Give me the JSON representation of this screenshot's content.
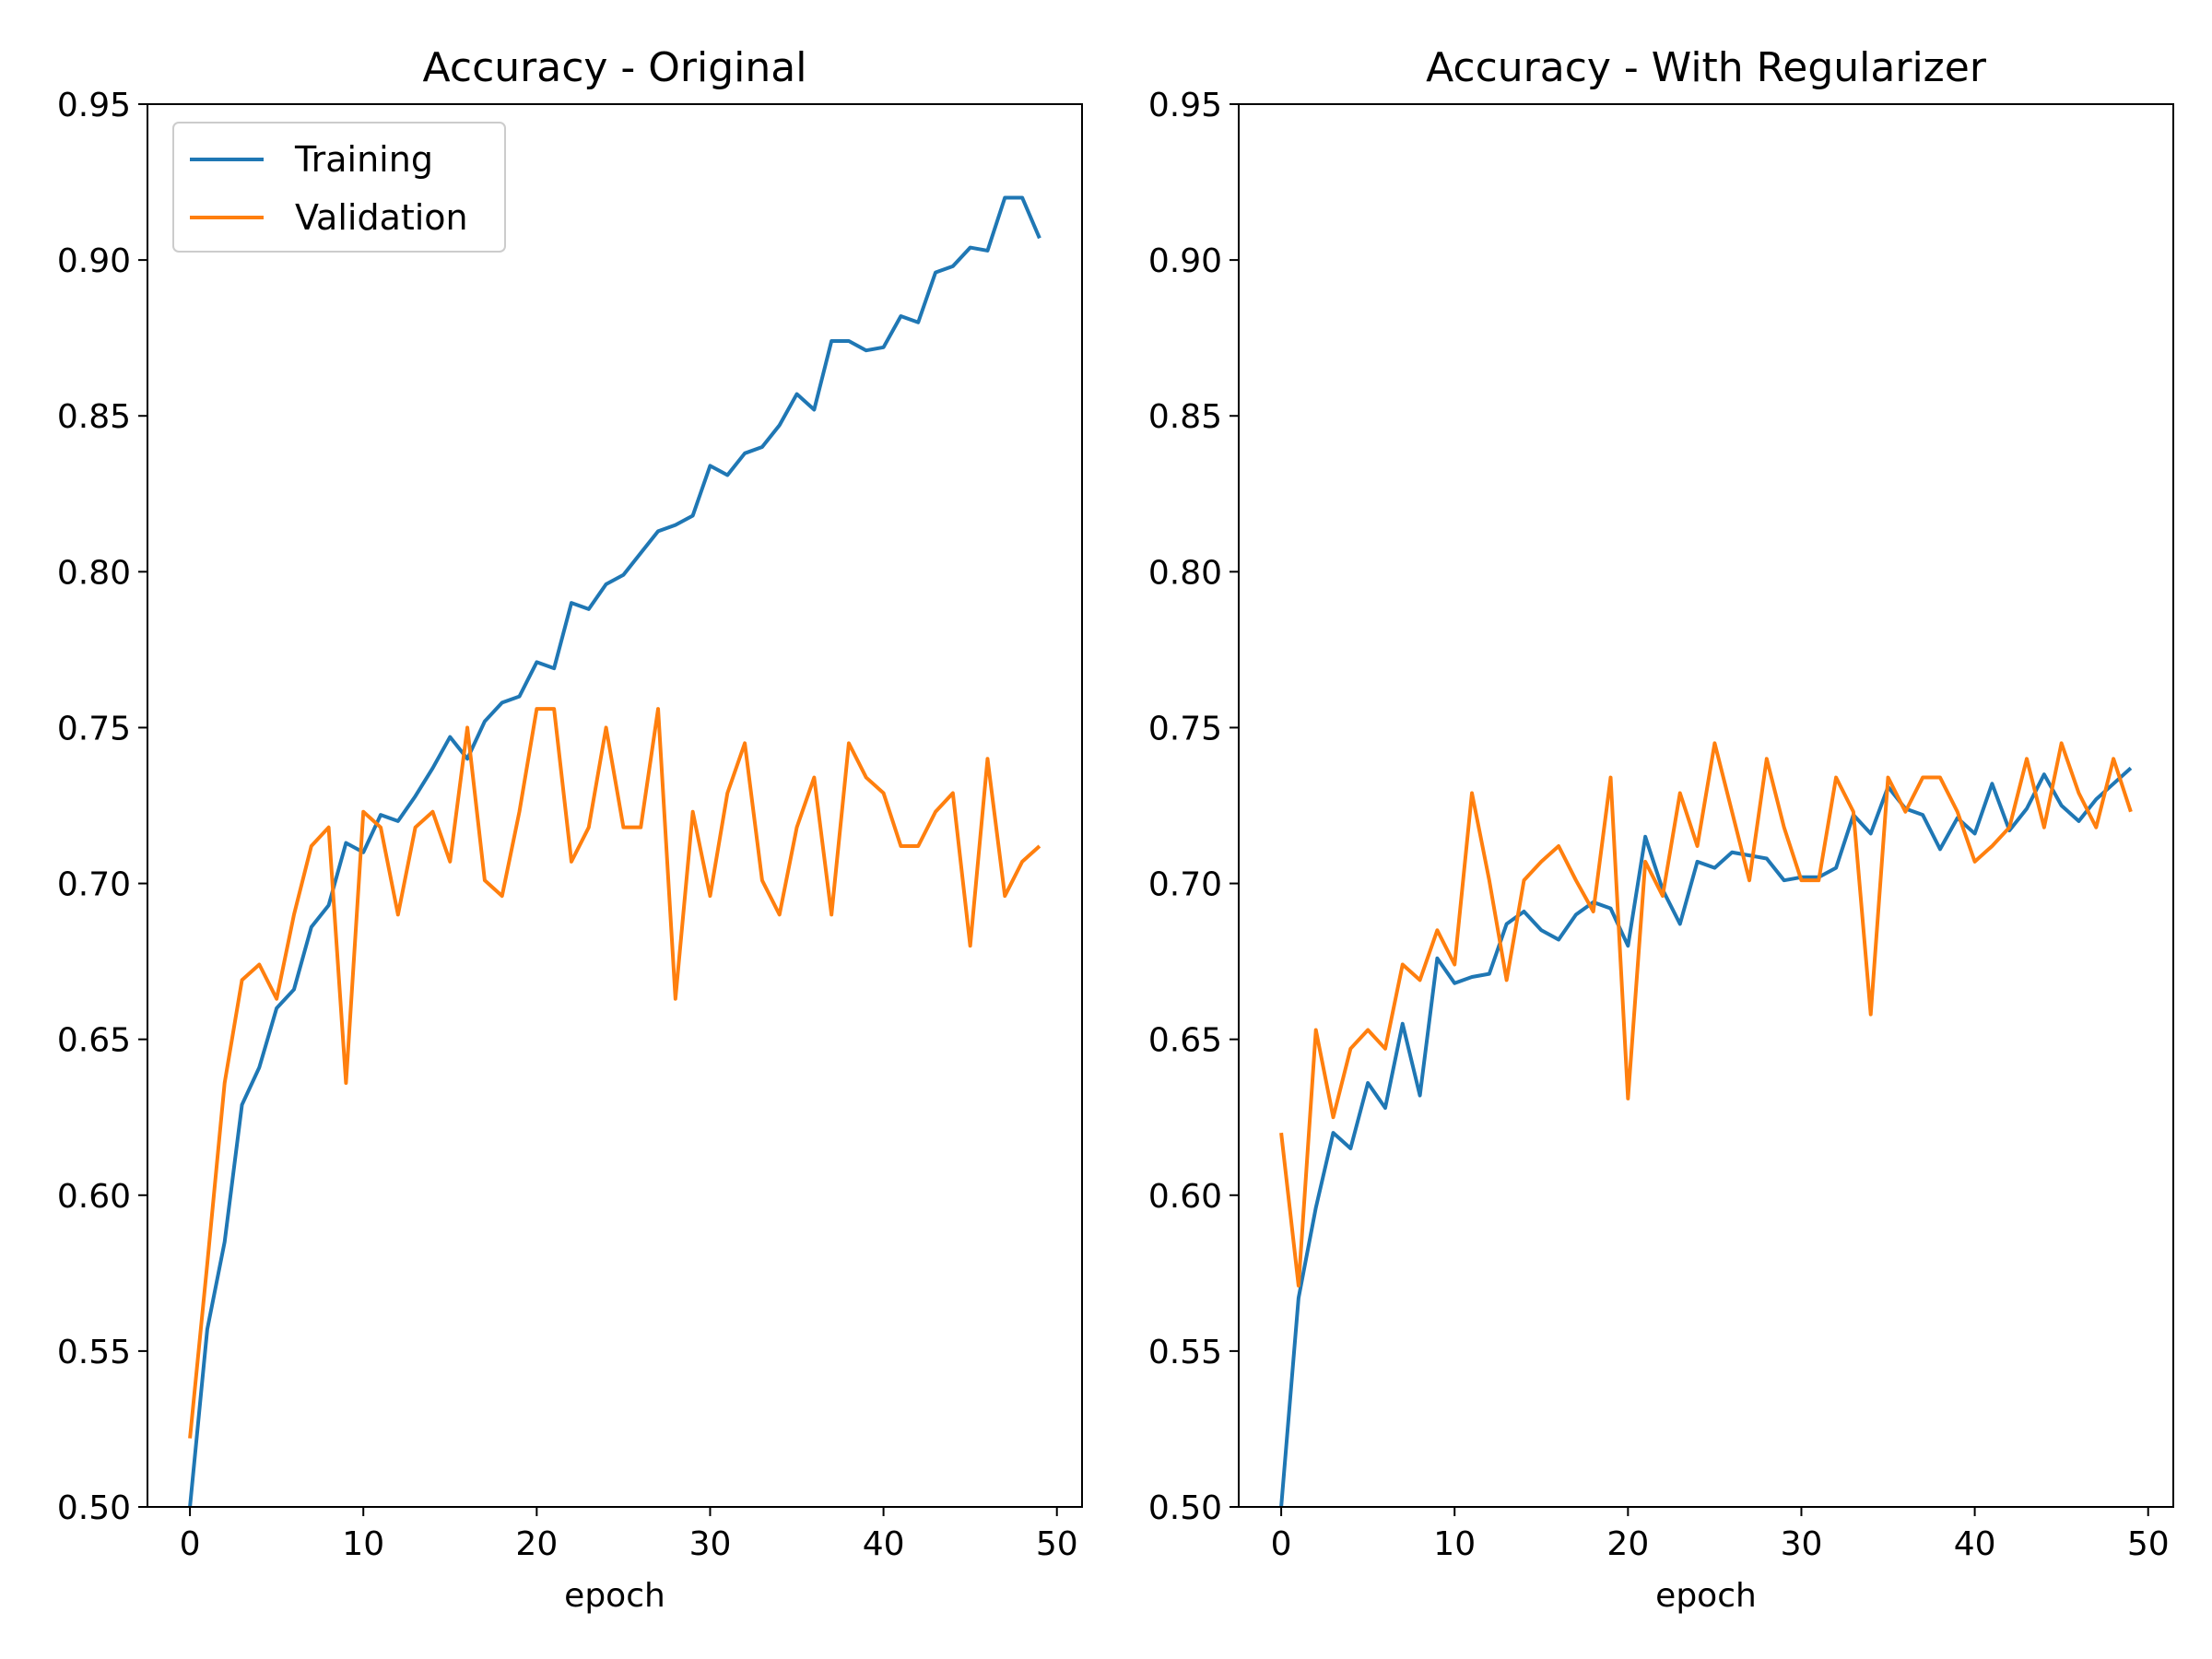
{
  "chart_data": [
    {
      "type": "line",
      "title": "Accuracy - Original",
      "xlabel": "epoch",
      "ylabel": "",
      "xlim": [
        -2.45,
        51.45
      ],
      "ylim": [
        0.5,
        0.95
      ],
      "xticks": [
        0,
        10,
        20,
        30,
        40,
        50
      ],
      "xtick_labels": [
        "0",
        "10",
        "20",
        "30",
        "40",
        "50"
      ],
      "yticks": [
        0.5,
        0.55,
        0.6,
        0.65,
        0.7,
        0.75,
        0.8,
        0.85,
        0.9,
        0.95
      ],
      "ytick_labels": [
        "0.50",
        "0.55",
        "0.60",
        "0.65",
        "0.70",
        "0.75",
        "0.80",
        "0.85",
        "0.90",
        "0.95"
      ],
      "grid": false,
      "legend": "upper-left",
      "series": [
        {
          "name": "Training",
          "color": "#1f77b4",
          "x": [
            0,
            1,
            2,
            3,
            4,
            5,
            6,
            7,
            8,
            9,
            10,
            11,
            12,
            13,
            14,
            15,
            16,
            17,
            18,
            19,
            20,
            21,
            22,
            23,
            24,
            25,
            26,
            27,
            28,
            29,
            30,
            31,
            32,
            33,
            34,
            35,
            36,
            37,
            38,
            39,
            40,
            41,
            42,
            43,
            44,
            45,
            46,
            47,
            48,
            49
          ],
          "values": [
            0.5,
            0.557,
            0.585,
            0.629,
            0.641,
            0.66,
            0.666,
            0.686,
            0.693,
            0.713,
            0.71,
            0.722,
            0.72,
            0.728,
            0.737,
            0.747,
            0.74,
            0.752,
            0.758,
            0.76,
            0.771,
            0.769,
            0.79,
            0.788,
            0.796,
            0.799,
            0.806,
            0.813,
            0.815,
            0.818,
            0.834,
            0.831,
            0.838,
            0.84,
            0.847,
            0.857,
            0.852,
            0.874,
            0.874,
            0.871,
            0.872,
            0.882,
            0.88,
            0.896,
            0.898,
            0.904,
            0.903,
            0.92,
            0.92,
            0.907
          ]
        },
        {
          "name": "Validation",
          "color": "#ff7f0e",
          "x": [
            0,
            1,
            2,
            3,
            4,
            5,
            6,
            7,
            8,
            9,
            10,
            11,
            12,
            13,
            14,
            15,
            16,
            17,
            18,
            19,
            20,
            21,
            22,
            23,
            24,
            25,
            26,
            27,
            28,
            29,
            30,
            31,
            32,
            33,
            34,
            35,
            36,
            37,
            38,
            39,
            40,
            41,
            42,
            43,
            44,
            45,
            46,
            47,
            48,
            49
          ],
          "values": [
            0.522,
            0.578,
            0.636,
            0.669,
            0.674,
            0.663,
            0.69,
            0.712,
            0.718,
            0.636,
            0.723,
            0.718,
            0.69,
            0.718,
            0.723,
            0.707,
            0.75,
            0.701,
            0.696,
            0.723,
            0.756,
            0.756,
            0.707,
            0.718,
            0.75,
            0.718,
            0.718,
            0.756,
            0.663,
            0.723,
            0.696,
            0.729,
            0.745,
            0.701,
            0.69,
            0.718,
            0.734,
            0.69,
            0.745,
            0.734,
            0.729,
            0.712,
            0.712,
            0.723,
            0.729,
            0.68,
            0.74,
            0.696,
            0.707,
            0.712
          ]
        }
      ]
    },
    {
      "type": "line",
      "title": "Accuracy - With Regularizer",
      "xlabel": "epoch",
      "ylabel": "",
      "xlim": [
        -2.45,
        51.45
      ],
      "ylim": [
        0.5,
        0.95
      ],
      "xticks": [
        0,
        10,
        20,
        30,
        40,
        50
      ],
      "xtick_labels": [
        "0",
        "10",
        "20",
        "30",
        "40",
        "50"
      ],
      "yticks": [
        0.5,
        0.55,
        0.6,
        0.65,
        0.7,
        0.75,
        0.8,
        0.85,
        0.9,
        0.95
      ],
      "ytick_labels": [
        "0.50",
        "0.55",
        "0.60",
        "0.65",
        "0.70",
        "0.75",
        "0.80",
        "0.85",
        "0.90",
        "0.95"
      ],
      "grid": false,
      "series": [
        {
          "name": "Training",
          "color": "#1f77b4",
          "x": [
            0,
            1,
            2,
            3,
            4,
            5,
            6,
            7,
            8,
            9,
            10,
            11,
            12,
            13,
            14,
            15,
            16,
            17,
            18,
            19,
            20,
            21,
            22,
            23,
            24,
            25,
            26,
            27,
            28,
            29,
            30,
            31,
            32,
            33,
            34,
            35,
            36,
            37,
            38,
            39,
            40,
            41,
            42,
            43,
            44,
            45,
            46,
            47,
            48,
            49
          ],
          "values": [
            0.5,
            0.567,
            0.596,
            0.62,
            0.615,
            0.636,
            0.628,
            0.655,
            0.632,
            0.676,
            0.668,
            0.67,
            0.671,
            0.687,
            0.691,
            0.685,
            0.682,
            0.69,
            0.694,
            0.692,
            0.68,
            0.715,
            0.698,
            0.687,
            0.707,
            0.705,
            0.71,
            0.709,
            0.708,
            0.701,
            0.702,
            0.702,
            0.705,
            0.722,
            0.716,
            0.731,
            0.724,
            0.722,
            0.711,
            0.721,
            0.716,
            0.732,
            0.717,
            0.724,
            0.735,
            0.725,
            0.72,
            0.727,
            0.732,
            0.737
          ]
        },
        {
          "name": "Validation",
          "color": "#ff7f0e",
          "x": [
            0,
            1,
            2,
            3,
            4,
            5,
            6,
            7,
            8,
            9,
            10,
            11,
            12,
            13,
            14,
            15,
            16,
            17,
            18,
            19,
            20,
            21,
            22,
            23,
            24,
            25,
            26,
            27,
            28,
            29,
            30,
            31,
            32,
            33,
            34,
            35,
            36,
            37,
            38,
            39,
            40,
            41,
            42,
            43,
            44,
            45,
            46,
            47,
            48,
            49
          ],
          "values": [
            0.62,
            0.571,
            0.653,
            0.625,
            0.647,
            0.653,
            0.647,
            0.674,
            0.669,
            0.685,
            0.674,
            0.729,
            0.701,
            0.669,
            0.701,
            0.707,
            0.712,
            0.701,
            0.691,
            0.734,
            0.631,
            0.707,
            0.696,
            0.729,
            0.712,
            0.745,
            0.723,
            0.701,
            0.74,
            0.718,
            0.701,
            0.701,
            0.734,
            0.723,
            0.658,
            0.734,
            0.723,
            0.734,
            0.734,
            0.723,
            0.707,
            0.712,
            0.718,
            0.74,
            0.718,
            0.745,
            0.729,
            0.718,
            0.74,
            0.723
          ]
        }
      ]
    }
  ]
}
